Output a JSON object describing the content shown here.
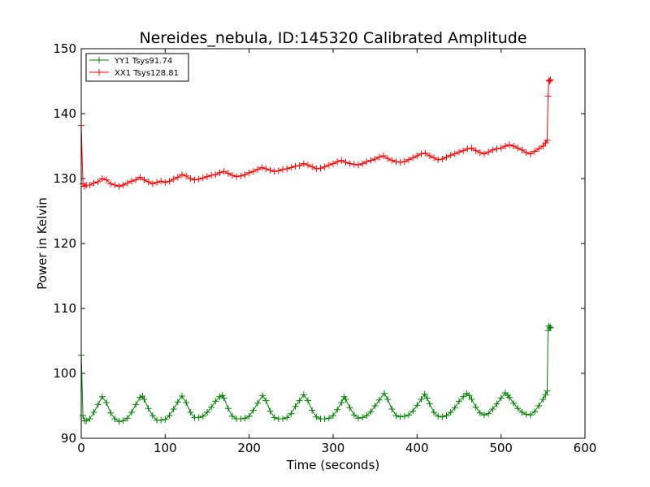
{
  "chart_data": {
    "type": "line",
    "title": "Nereides_nebula, ID:145320 Calibrated Amplitude",
    "xlabel": "Time (seconds)",
    "ylabel": "Power in Kelvin",
    "xlim": [
      0,
      600
    ],
    "ylim": [
      90,
      150
    ],
    "xticks": [
      0,
      100,
      200,
      300,
      400,
      500,
      600
    ],
    "yticks": [
      90,
      100,
      110,
      120,
      130,
      140,
      150
    ],
    "legend_position": "top-left",
    "marker": "+",
    "series": [
      {
        "name": "YY1 Tsys91.74",
        "color": "#008000",
        "x": [
          0,
          2,
          4,
          6,
          10,
          15,
          20,
          25,
          30,
          35,
          40,
          45,
          50,
          55,
          60,
          65,
          70,
          73,
          75,
          80,
          85,
          90,
          95,
          100,
          105,
          110,
          115,
          120,
          125,
          130,
          135,
          140,
          145,
          150,
          155,
          160,
          165,
          168,
          170,
          175,
          180,
          185,
          190,
          195,
          200,
          205,
          210,
          216,
          220,
          225,
          230,
          235,
          240,
          245,
          250,
          255,
          260,
          265,
          270,
          275,
          280,
          285,
          290,
          295,
          300,
          305,
          310,
          313,
          315,
          320,
          325,
          330,
          335,
          340,
          345,
          350,
          355,
          361,
          365,
          370,
          375,
          380,
          385,
          390,
          395,
          400,
          405,
          409,
          412,
          415,
          420,
          425,
          430,
          435,
          440,
          445,
          450,
          455,
          459,
          462,
          465,
          470,
          475,
          480,
          485,
          490,
          495,
          500,
          505,
          508,
          510,
          515,
          520,
          525,
          530,
          535,
          540,
          545,
          550,
          553,
          555,
          556,
          557,
          558,
          559
        ],
        "values": [
          102.8,
          93.5,
          92.7,
          92.7,
          93.0,
          94.0,
          95.2,
          96.4,
          95.5,
          93.9,
          93.0,
          92.6,
          92.7,
          93.1,
          94.0,
          95.2,
          96.3,
          96.5,
          96.0,
          94.6,
          93.5,
          92.8,
          92.8,
          92.9,
          93.5,
          94.5,
          95.6,
          96.5,
          95.5,
          94.0,
          93.2,
          93.2,
          93.4,
          94.0,
          94.8,
          95.7,
          96.4,
          96.6,
          96.2,
          94.6,
          93.4,
          93.0,
          93.0,
          93.1,
          93.4,
          94.3,
          95.4,
          96.6,
          95.8,
          94.2,
          93.2,
          93.0,
          93.0,
          93.2,
          93.8,
          94.9,
          95.8,
          96.7,
          95.8,
          94.3,
          93.3,
          93.0,
          93.0,
          93.1,
          93.5,
          94.4,
          95.5,
          96.4,
          96.0,
          94.7,
          93.6,
          93.1,
          93.2,
          93.5,
          94.1,
          95.0,
          95.9,
          96.9,
          96.0,
          94.5,
          93.5,
          93.3,
          93.4,
          93.6,
          94.2,
          95.1,
          96.0,
          96.8,
          96.2,
          95.3,
          94.0,
          93.4,
          93.3,
          93.5,
          94.0,
          94.7,
          95.7,
          96.4,
          96.9,
          96.6,
          96.0,
          94.8,
          93.9,
          93.6,
          93.8,
          94.5,
          95.3,
          96.2,
          97.0,
          96.6,
          96.3,
          95.4,
          94.6,
          94.0,
          93.7,
          93.6,
          94.1,
          95.0,
          96.0,
          96.7,
          97.3,
          106.6,
          107.3,
          107.0,
          107.1
        ]
      },
      {
        "name": "XX1 Tsys128.81",
        "color": "#ff0000",
        "x": [
          0,
          2,
          4,
          6,
          10,
          15,
          20,
          25,
          30,
          35,
          40,
          45,
          50,
          55,
          60,
          65,
          70,
          75,
          80,
          85,
          90,
          95,
          100,
          105,
          110,
          115,
          120,
          125,
          130,
          135,
          140,
          145,
          150,
          155,
          160,
          165,
          170,
          175,
          180,
          185,
          190,
          195,
          200,
          205,
          210,
          215,
          220,
          225,
          230,
          235,
          240,
          245,
          250,
          255,
          260,
          265,
          270,
          275,
          280,
          285,
          290,
          295,
          300,
          305,
          310,
          315,
          320,
          325,
          330,
          335,
          340,
          345,
          350,
          355,
          360,
          365,
          370,
          375,
          380,
          385,
          390,
          395,
          400,
          405,
          410,
          415,
          420,
          425,
          430,
          435,
          440,
          445,
          450,
          455,
          460,
          465,
          470,
          475,
          480,
          485,
          490,
          495,
          500,
          505,
          510,
          515,
          520,
          525,
          530,
          535,
          540,
          545,
          550,
          553,
          555,
          556,
          557,
          558,
          559
        ],
        "values": [
          138.2,
          129.2,
          128.8,
          129.0,
          129.0,
          129.3,
          129.5,
          130.0,
          129.8,
          129.2,
          129.0,
          128.8,
          129.0,
          129.3,
          129.6,
          129.8,
          130.2,
          129.8,
          129.5,
          129.2,
          129.4,
          129.6,
          129.4,
          129.6,
          129.9,
          130.2,
          130.6,
          130.4,
          130.0,
          129.8,
          129.9,
          130.1,
          130.3,
          130.5,
          130.6,
          130.9,
          131.1,
          130.8,
          130.5,
          130.3,
          130.4,
          130.6,
          130.9,
          131.1,
          131.4,
          131.7,
          131.5,
          131.3,
          131.1,
          131.2,
          131.4,
          131.5,
          131.7,
          131.9,
          132.0,
          132.3,
          132.1,
          131.8,
          131.5,
          131.6,
          131.8,
          132.1,
          132.3,
          132.6,
          132.8,
          132.5,
          132.3,
          132.2,
          132.1,
          132.3,
          132.6,
          132.8,
          133.0,
          133.3,
          133.5,
          133.1,
          132.8,
          132.6,
          132.5,
          132.6,
          132.9,
          133.2,
          133.5,
          133.8,
          133.9,
          133.5,
          133.2,
          132.9,
          133.0,
          133.3,
          133.6,
          133.8,
          134.1,
          134.3,
          134.6,
          134.7,
          134.3,
          134.0,
          133.8,
          134.1,
          134.4,
          134.6,
          134.7,
          135.0,
          135.2,
          135.0,
          134.7,
          134.4,
          134.0,
          133.8,
          134.2,
          134.6,
          135.0,
          135.5,
          135.9,
          142.7,
          145.1,
          145.0,
          145.2
        ]
      }
    ]
  }
}
